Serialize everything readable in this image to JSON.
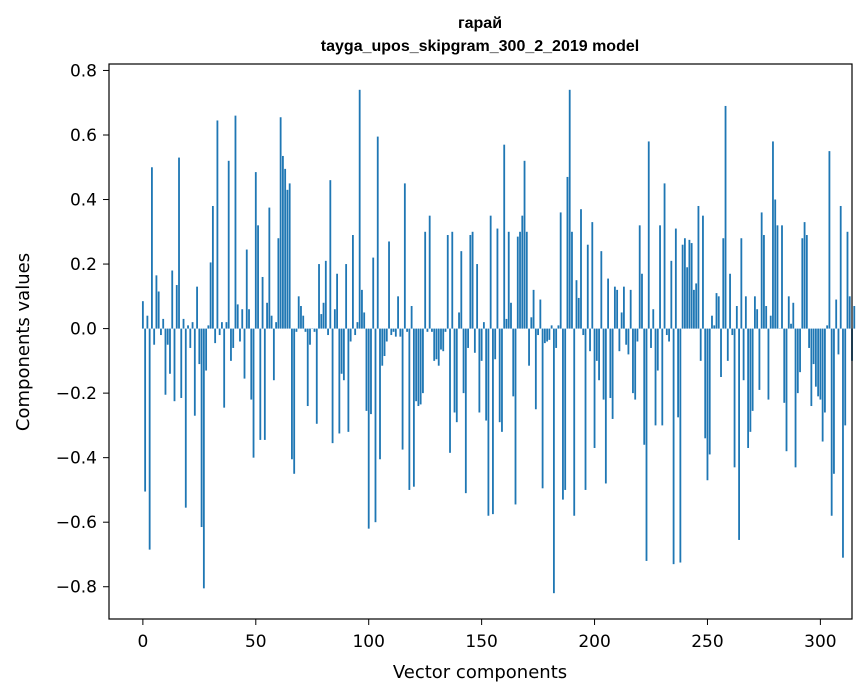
{
  "chart_data": {
    "type": "bar",
    "title": "гарай",
    "subtitle": "tayga_upos_skipgram_300_2_2019 model",
    "xlabel": "Vector components",
    "ylabel": "Components values",
    "xlim": [
      -15,
      314
    ],
    "ylim": [
      -0.9,
      0.82
    ],
    "xticks": [
      0,
      50,
      100,
      150,
      200,
      250,
      300
    ],
    "xtick_labels": [
      "0",
      "50",
      "100",
      "150",
      "200",
      "250",
      "300"
    ],
    "yticks": [
      -0.8,
      -0.6,
      -0.4,
      -0.2,
      0.0,
      0.2,
      0.4,
      0.6,
      0.8
    ],
    "ytick_labels": [
      "−0.8",
      "−0.6",
      "−0.4",
      "−0.2",
      "0.0",
      "0.2",
      "0.4",
      "0.6",
      "0.8"
    ],
    "grid": false,
    "bar_color": "#1f77b4",
    "values": [
      0.085,
      -0.505,
      0.04,
      -0.685,
      0.5,
      -0.05,
      0.165,
      0.115,
      -0.02,
      0.03,
      -0.205,
      -0.05,
      -0.14,
      0.18,
      -0.225,
      0.135,
      0.53,
      -0.215,
      0.03,
      -0.555,
      0.01,
      -0.06,
      0.02,
      -0.27,
      0.13,
      -0.11,
      -0.615,
      -0.805,
      -0.13,
      0.01,
      0.205,
      0.38,
      -0.045,
      0.645,
      -0.02,
      0.02,
      -0.245,
      0.02,
      0.52,
      -0.1,
      -0.06,
      0.66,
      0.075,
      -0.04,
      0.06,
      -0.155,
      0.245,
      0.06,
      -0.22,
      -0.4,
      0.485,
      0.32,
      -0.345,
      0.16,
      -0.345,
      0.08,
      0.375,
      0.04,
      -0.16,
      0.02,
      0.28,
      0.655,
      0.535,
      0.495,
      0.43,
      0.45,
      -0.405,
      -0.45,
      -0.01,
      0.1,
      0.07,
      0.04,
      -0.01,
      -0.24,
      -0.05,
      0.0,
      -0.01,
      -0.295,
      0.2,
      0.045,
      0.08,
      0.21,
      -0.02,
      0.46,
      -0.355,
      0.06,
      0.17,
      -0.325,
      -0.14,
      -0.16,
      0.2,
      -0.32,
      -0.04,
      0.29,
      -0.02,
      0.02,
      0.74,
      0.12,
      0.05,
      -0.255,
      -0.62,
      -0.265,
      0.22,
      -0.6,
      0.595,
      -0.405,
      -0.115,
      -0.085,
      -0.04,
      0.27,
      -0.02,
      -0.01,
      -0.025,
      0.1,
      -0.025,
      -0.375,
      0.45,
      -0.01,
      -0.5,
      0.07,
      -0.49,
      -0.225,
      -0.24,
      -0.235,
      -0.2,
      0.3,
      -0.01,
      0.35,
      -0.01,
      -0.1,
      -0.095,
      -0.115,
      -0.065,
      -0.07,
      -0.01,
      0.29,
      -0.385,
      0.3,
      -0.26,
      -0.29,
      0.05,
      0.24,
      -0.2,
      -0.51,
      -0.06,
      0.29,
      0.3,
      -0.075,
      0.2,
      -0.26,
      -0.1,
      0.02,
      -0.285,
      -0.58,
      0.35,
      -0.575,
      -0.095,
      0.31,
      -0.29,
      -0.32,
      0.57,
      0.03,
      0.3,
      0.08,
      -0.21,
      -0.545,
      0.285,
      0.3,
      0.35,
      0.52,
      0.3,
      -0.115,
      0.035,
      0.12,
      -0.25,
      -0.02,
      0.09,
      -0.495,
      -0.045,
      -0.04,
      -0.035,
      0.01,
      -0.82,
      -0.06,
      0.01,
      0.36,
      -0.53,
      -0.5,
      0.47,
      0.74,
      0.3,
      -0.58,
      0.15,
      0.095,
      0.37,
      -0.02,
      -0.5,
      0.26,
      -0.07,
      0.33,
      -0.37,
      -0.1,
      -0.16,
      0.24,
      -0.22,
      -0.48,
      0.155,
      -0.215,
      -0.28,
      0.13,
      0.12,
      -0.07,
      0.05,
      0.13,
      -0.05,
      -0.08,
      0.12,
      -0.2,
      -0.22,
      -0.04,
      0.32,
      0.17,
      -0.36,
      -0.72,
      0.58,
      -0.06,
      0.06,
      -0.3,
      -0.13,
      0.32,
      -0.3,
      0.45,
      -0.02,
      -0.04,
      0.21,
      -0.73,
      0.31,
      -0.275,
      -0.725,
      0.26,
      0.28,
      0.19,
      0.275,
      0.265,
      0.12,
      0.14,
      0.38,
      -0.1,
      0.35,
      -0.34,
      -0.47,
      -0.39,
      0.04,
      0.01,
      0.11,
      0.1,
      -0.15,
      0.28,
      0.69,
      -0.1,
      0.17,
      -0.02,
      -0.43,
      0.07,
      -0.655,
      0.28,
      -0.16,
      0.1,
      -0.37,
      -0.32,
      -0.255,
      0.1,
      0.06,
      -0.19,
      0.36,
      0.29,
      0.07,
      -0.22,
      0.04,
      0.58,
      0.4,
      0.32,
      0.0,
      0.32,
      -0.23,
      -0.38,
      0.1,
      0.015,
      0.08,
      -0.43,
      -0.2,
      -0.135,
      0.28,
      0.33,
      0.29,
      -0.06,
      -0.24,
      -0.11,
      -0.18,
      -0.21,
      -0.22,
      -0.35,
      -0.26,
      0.01,
      0.55,
      -0.58,
      -0.45,
      0.09,
      -0.08,
      0.38,
      -0.71,
      -0.3,
      0.3,
      0.1,
      -0.1,
      0.07
    ]
  }
}
